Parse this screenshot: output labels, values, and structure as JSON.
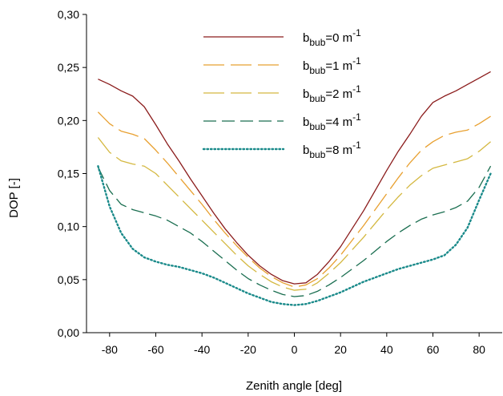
{
  "chart_data": {
    "type": "line",
    "xlabel": "Zenith angle [deg]",
    "ylabel": "DOP [-]",
    "xlim": [
      -90,
      90
    ],
    "ylim": [
      0,
      0.3
    ],
    "xticks": [
      -80,
      -60,
      -40,
      -20,
      0,
      20,
      40,
      60,
      80
    ],
    "xtick_labels": [
      "-80",
      "-60",
      "-40",
      "-20",
      "0",
      "20",
      "40",
      "60",
      "80"
    ],
    "yticks": [
      0,
      0.05,
      0.1,
      0.15,
      0.2,
      0.25,
      0.3
    ],
    "ytick_labels": [
      "0,00",
      "0,05",
      "0,10",
      "0,15",
      "0,20",
      "0,25",
      "0,30"
    ],
    "grid": false,
    "legend_position": "top-center",
    "x": [
      -85,
      -80,
      -75,
      -70,
      -65,
      -60,
      -55,
      -50,
      -45,
      -40,
      -35,
      -30,
      -25,
      -20,
      -15,
      -10,
      -5,
      0,
      5,
      10,
      15,
      20,
      25,
      30,
      35,
      40,
      45,
      50,
      55,
      60,
      65,
      70,
      75,
      80,
      85
    ],
    "series": [
      {
        "name_main": "b",
        "name_sub": "bub",
        "name_rest": "=0 m",
        "name_sup": "-1",
        "color": "#8b1c1c",
        "dash": "solid",
        "values": [
          0.239,
          0.234,
          0.228,
          0.223,
          0.213,
          0.196,
          0.178,
          0.162,
          0.145,
          0.129,
          0.113,
          0.098,
          0.085,
          0.073,
          0.063,
          0.055,
          0.049,
          0.046,
          0.047,
          0.055,
          0.067,
          0.081,
          0.098,
          0.115,
          0.134,
          0.153,
          0.171,
          0.187,
          0.204,
          0.217,
          0.223,
          0.228,
          0.234,
          0.24,
          0.246
        ]
      },
      {
        "name_main": "b",
        "name_sub": "bub",
        "name_rest": "=1 m",
        "name_sup": "-1",
        "color": "#e8a030",
        "dash": "long",
        "values": [
          0.208,
          0.197,
          0.19,
          0.187,
          0.183,
          0.172,
          0.16,
          0.147,
          0.134,
          0.121,
          0.107,
          0.094,
          0.082,
          0.071,
          0.061,
          0.053,
          0.047,
          0.043,
          0.045,
          0.051,
          0.061,
          0.073,
          0.087,
          0.101,
          0.116,
          0.131,
          0.146,
          0.16,
          0.172,
          0.18,
          0.186,
          0.189,
          0.191,
          0.197,
          0.204
        ]
      },
      {
        "name_main": "b",
        "name_sub": "bub",
        "name_rest": "=2 m",
        "name_sup": "-1",
        "color": "#d4b840",
        "dash": "long",
        "values": [
          0.184,
          0.17,
          0.162,
          0.159,
          0.157,
          0.15,
          0.139,
          0.128,
          0.117,
          0.106,
          0.095,
          0.084,
          0.073,
          0.063,
          0.055,
          0.048,
          0.043,
          0.04,
          0.041,
          0.047,
          0.056,
          0.066,
          0.078,
          0.09,
          0.103,
          0.116,
          0.128,
          0.139,
          0.148,
          0.155,
          0.158,
          0.161,
          0.164,
          0.171,
          0.18
        ]
      },
      {
        "name_main": "b",
        "name_sub": "bub",
        "name_rest": "=4 m",
        "name_sup": "-1",
        "color": "#1a6e50",
        "dash": "medium",
        "values": [
          0.156,
          0.134,
          0.121,
          0.116,
          0.113,
          0.11,
          0.106,
          0.1,
          0.094,
          0.086,
          0.077,
          0.068,
          0.059,
          0.051,
          0.045,
          0.04,
          0.036,
          0.034,
          0.035,
          0.039,
          0.045,
          0.052,
          0.06,
          0.068,
          0.077,
          0.086,
          0.094,
          0.101,
          0.107,
          0.111,
          0.114,
          0.118,
          0.124,
          0.137,
          0.157
        ]
      },
      {
        "name_main": "b",
        "name_sub": "bub",
        "name_rest": "=8 m",
        "name_sup": "-1",
        "color": "#1a8a8a",
        "dash": "dotted",
        "values": [
          0.157,
          0.119,
          0.094,
          0.079,
          0.071,
          0.067,
          0.064,
          0.062,
          0.059,
          0.056,
          0.052,
          0.047,
          0.042,
          0.037,
          0.033,
          0.029,
          0.027,
          0.026,
          0.027,
          0.03,
          0.034,
          0.038,
          0.043,
          0.048,
          0.052,
          0.056,
          0.06,
          0.063,
          0.066,
          0.069,
          0.073,
          0.083,
          0.099,
          0.125,
          0.15
        ]
      }
    ]
  }
}
